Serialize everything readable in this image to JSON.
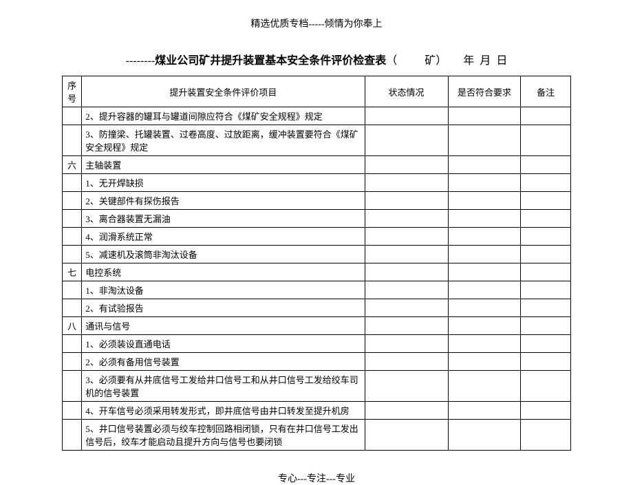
{
  "header": "精选优质专档-----倾情为你奉上",
  "title": {
    "prefix": "--------",
    "main": "煤业公司矿井提升装置基本安全条件评价检查表",
    "suffix1": "（          矿）",
    "suffix2": "      年  月  日"
  },
  "columns": {
    "seq": "序号",
    "item": "提升装置安全条件评价项目",
    "status": "状态情况",
    "compliant": "是否符合要求",
    "note": "备注"
  },
  "rows": [
    {
      "seq": "",
      "item": "2、提升容器的罐耳与罐道间隙应符合《煤矿安全规程》规定",
      "status": "",
      "compliant": "",
      "note": ""
    },
    {
      "seq": "",
      "item": "3、防撞梁、托罐装置、过卷高度、过放距离，缓冲装置要符合《煤矿安全规程》规定",
      "status": "",
      "compliant": "",
      "note": ""
    },
    {
      "seq": "六",
      "item": "主轴装置",
      "status": "",
      "compliant": "",
      "note": ""
    },
    {
      "seq": "",
      "item": "1、无开焊缺损",
      "status": "",
      "compliant": "",
      "note": ""
    },
    {
      "seq": "",
      "item": "2、关键部件有探伤报告",
      "status": "",
      "compliant": "",
      "note": ""
    },
    {
      "seq": "",
      "item": "3、离合器装置无漏油",
      "status": "",
      "compliant": "",
      "note": ""
    },
    {
      "seq": "",
      "item": "4、润滑系统正常",
      "status": "",
      "compliant": "",
      "note": ""
    },
    {
      "seq": "",
      "item": "5、减速机及滚筒非淘汰设备",
      "status": "",
      "compliant": "",
      "note": ""
    },
    {
      "seq": "七",
      "item": "电控系统",
      "status": "",
      "compliant": "",
      "note": ""
    },
    {
      "seq": "",
      "item": "1、非淘汰设备",
      "status": "",
      "compliant": "",
      "note": ""
    },
    {
      "seq": "",
      "item": "2、有试验报告",
      "status": "",
      "compliant": "",
      "note": ""
    },
    {
      "seq": "八",
      "item": "通讯与信号",
      "status": "",
      "compliant": "",
      "note": ""
    },
    {
      "seq": "",
      "item": "1、必须装设直通电话",
      "status": "",
      "compliant": "",
      "note": ""
    },
    {
      "seq": "",
      "item": "2、必须有备用信号装置",
      "status": "",
      "compliant": "",
      "note": ""
    },
    {
      "seq": "",
      "item": "3、必须要有从井底信号工发给井口信号工和从井口信号工发给绞车司机的信号装置",
      "status": "",
      "compliant": "",
      "note": ""
    },
    {
      "seq": "",
      "item": "4、开车信号必须采用转发形式，即井底信号由井口转发至提升机房",
      "status": "",
      "compliant": "",
      "note": ""
    },
    {
      "seq": "",
      "item": "5、井口信号装置必须与绞车控制回路相闭锁，只有在井口信号工发出信号后，绞车才能启动且提升方向与信号也要闭锁",
      "status": "",
      "compliant": "",
      "note": ""
    }
  ],
  "footer": "专心---专注---专业"
}
